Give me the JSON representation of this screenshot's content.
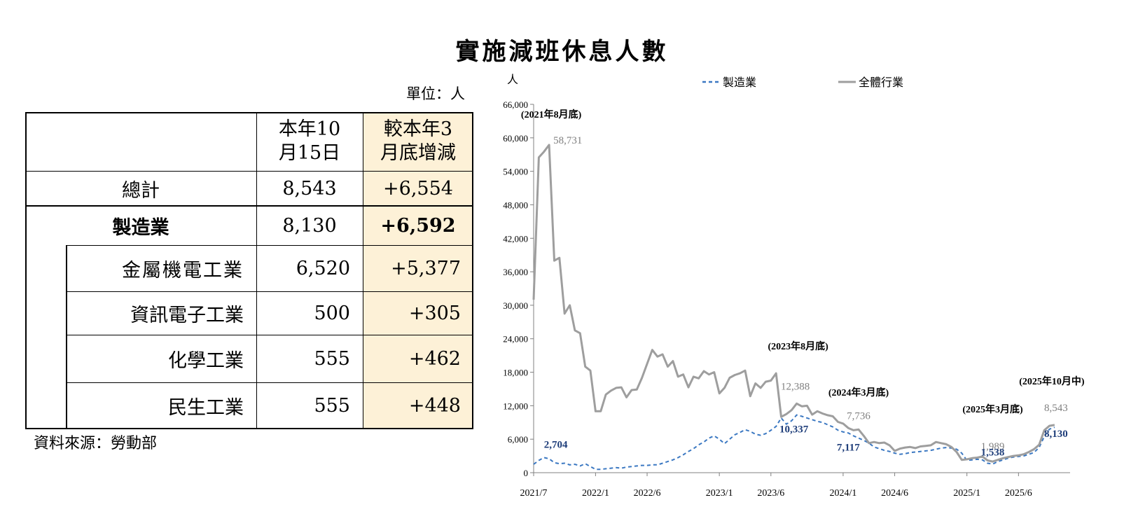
{
  "title": "實施減班休息人數",
  "unit_label": "單位：人",
  "source": "資料來源：勞動部",
  "table": {
    "col_current": "本年10\n月15日",
    "col_change": "較本年3\n月底增減",
    "rows": {
      "total": {
        "label": "總計",
        "value": "8,543",
        "change": "+6,554"
      },
      "manufacturing": {
        "label": "製造業",
        "value": "8,130",
        "change": "+6,592"
      },
      "metal": {
        "label": "金屬機電工業",
        "value": "6,520",
        "change": "+5,377"
      },
      "it": {
        "label": "資訊電子工業",
        "value": "500",
        "change": "+305"
      },
      "chem": {
        "label": "化學工業",
        "value": "555",
        "change": "+462"
      },
      "livelihood": {
        "label": "民生工業",
        "value": "555",
        "change": "+448"
      }
    }
  },
  "colors": {
    "manufacturing": "#3b78c2",
    "all": "#9e9e9e",
    "label_blue": "#1f3e7a",
    "highlight": "#fdf1d7"
  },
  "chart_data": {
    "type": "line",
    "y_unit": "人",
    "ylim": [
      0,
      66000
    ],
    "yticks": [
      0,
      6000,
      12000,
      18000,
      24000,
      30000,
      36000,
      42000,
      48000,
      54000,
      60000,
      66000
    ],
    "ytick_labels": [
      "0",
      "6,000",
      "12,000",
      "18,000",
      "24,000",
      "30,000",
      "36,000",
      "42,000",
      "48,000",
      "54,000",
      "60,000",
      "66,000"
    ],
    "xlim": [
      0,
      104
    ],
    "xticks": [
      {
        "x": 0,
        "label": "2021/7"
      },
      {
        "x": 12,
        "label": "2022/1"
      },
      {
        "x": 22,
        "label": "2022/6"
      },
      {
        "x": 36,
        "label": "2023/1"
      },
      {
        "x": 46,
        "label": "2023/6"
      },
      {
        "x": 60,
        "label": "2024/1"
      },
      {
        "x": 70,
        "label": "2024/6"
      },
      {
        "x": 84,
        "label": "2025/1"
      },
      {
        "x": 94,
        "label": "2025/6"
      }
    ],
    "series": [
      {
        "name": "製造業",
        "style": "dashed",
        "values": [
          [
            0,
            1500
          ],
          [
            1,
            2200
          ],
          [
            2,
            2704
          ],
          [
            3,
            2500
          ],
          [
            4,
            1800
          ],
          [
            5,
            1600
          ],
          [
            6,
            1700
          ],
          [
            7,
            1400
          ],
          [
            8,
            1500
          ],
          [
            9,
            1200
          ],
          [
            10,
            1600
          ],
          [
            11,
            1100
          ],
          [
            12,
            600
          ],
          [
            13,
            600
          ],
          [
            14,
            700
          ],
          [
            15,
            800
          ],
          [
            16,
            900
          ],
          [
            17,
            800
          ],
          [
            18,
            1000
          ],
          [
            19,
            1100
          ],
          [
            20,
            1200
          ],
          [
            21,
            1300
          ],
          [
            22,
            1300
          ],
          [
            23,
            1400
          ],
          [
            24,
            1400
          ],
          [
            25,
            1700
          ],
          [
            26,
            2000
          ],
          [
            27,
            2300
          ],
          [
            28,
            2700
          ],
          [
            29,
            3200
          ],
          [
            30,
            3800
          ],
          [
            31,
            4300
          ],
          [
            32,
            5000
          ],
          [
            33,
            5500
          ],
          [
            34,
            6200
          ],
          [
            35,
            6600
          ],
          [
            36,
            6000
          ],
          [
            37,
            5200
          ],
          [
            38,
            6000
          ],
          [
            39,
            6800
          ],
          [
            40,
            7200
          ],
          [
            41,
            7700
          ],
          [
            42,
            7400
          ],
          [
            43,
            6900
          ],
          [
            44,
            6700
          ],
          [
            45,
            7000
          ],
          [
            46,
            7600
          ],
          [
            47,
            8300
          ],
          [
            48,
            9800
          ],
          [
            49,
            8700
          ],
          [
            50,
            9300
          ],
          [
            51,
            10337
          ],
          [
            52,
            10100
          ],
          [
            53,
            9800
          ],
          [
            54,
            9500
          ],
          [
            55,
            9200
          ],
          [
            56,
            9000
          ],
          [
            57,
            8600
          ],
          [
            58,
            8200
          ],
          [
            59,
            7600
          ],
          [
            60,
            7300
          ],
          [
            61,
            7117
          ],
          [
            62,
            6600
          ],
          [
            63,
            6200
          ],
          [
            64,
            5800
          ],
          [
            65,
            5300
          ],
          [
            66,
            4600
          ],
          [
            67,
            4300
          ],
          [
            68,
            4000
          ],
          [
            69,
            3800
          ],
          [
            70,
            3500
          ],
          [
            71,
            3300
          ],
          [
            72,
            3400
          ],
          [
            73,
            3600
          ],
          [
            74,
            3700
          ],
          [
            75,
            3800
          ],
          [
            76,
            3900
          ],
          [
            77,
            4000
          ],
          [
            78,
            4200
          ],
          [
            79,
            4400
          ],
          [
            80,
            4500
          ],
          [
            81,
            4400
          ],
          [
            82,
            4200
          ],
          [
            83,
            3500
          ],
          [
            84,
            2200
          ],
          [
            85,
            2300
          ],
          [
            86,
            2400
          ],
          [
            87,
            2300
          ],
          [
            88,
            1700
          ],
          [
            89,
            1538
          ],
          [
            90,
            2000
          ],
          [
            91,
            2300
          ],
          [
            92,
            2600
          ],
          [
            93,
            2800
          ],
          [
            94,
            2900
          ],
          [
            95,
            3000
          ],
          [
            96,
            3300
          ],
          [
            97,
            3600
          ],
          [
            98,
            4500
          ],
          [
            99,
            6500
          ],
          [
            100,
            7800
          ],
          [
            101,
            8130
          ]
        ]
      },
      {
        "name": "全體行業",
        "style": "solid",
        "values": [
          [
            0,
            31000
          ],
          [
            1,
            56500
          ],
          [
            2,
            57500
          ],
          [
            3,
            58731
          ],
          [
            4,
            38000
          ],
          [
            5,
            38500
          ],
          [
            6,
            28500
          ],
          [
            7,
            30000
          ],
          [
            8,
            25500
          ],
          [
            9,
            25000
          ],
          [
            10,
            19000
          ],
          [
            11,
            18300
          ],
          [
            12,
            11000
          ],
          [
            13,
            11000
          ],
          [
            14,
            14000
          ],
          [
            15,
            14700
          ],
          [
            16,
            15200
          ],
          [
            17,
            15300
          ],
          [
            18,
            13500
          ],
          [
            19,
            14800
          ],
          [
            20,
            14900
          ],
          [
            21,
            17000
          ],
          [
            22,
            19500
          ],
          [
            23,
            22000
          ],
          [
            24,
            20800
          ],
          [
            25,
            21200
          ],
          [
            26,
            19000
          ],
          [
            27,
            20000
          ],
          [
            28,
            17200
          ],
          [
            29,
            17600
          ],
          [
            30,
            15300
          ],
          [
            31,
            17200
          ],
          [
            32,
            16900
          ],
          [
            33,
            18200
          ],
          [
            34,
            17600
          ],
          [
            35,
            18000
          ],
          [
            36,
            14200
          ],
          [
            37,
            15200
          ],
          [
            38,
            17000
          ],
          [
            39,
            17500
          ],
          [
            40,
            17800
          ],
          [
            41,
            18300
          ],
          [
            42,
            13700
          ],
          [
            43,
            16000
          ],
          [
            44,
            15200
          ],
          [
            45,
            16300
          ],
          [
            46,
            16500
          ],
          [
            47,
            17800
          ],
          [
            48,
            10000
          ],
          [
            49,
            10500
          ],
          [
            50,
            11200
          ],
          [
            51,
            12388
          ],
          [
            52,
            11900
          ],
          [
            53,
            12000
          ],
          [
            54,
            10400
          ],
          [
            55,
            11000
          ],
          [
            56,
            10600
          ],
          [
            57,
            10300
          ],
          [
            58,
            10100
          ],
          [
            59,
            9100
          ],
          [
            60,
            8800
          ],
          [
            61,
            8000
          ],
          [
            62,
            7600
          ],
          [
            63,
            7736
          ],
          [
            64,
            6600
          ],
          [
            65,
            5300
          ],
          [
            66,
            5500
          ],
          [
            67,
            5300
          ],
          [
            68,
            5400
          ],
          [
            69,
            4900
          ],
          [
            70,
            3900
          ],
          [
            71,
            4300
          ],
          [
            72,
            4500
          ],
          [
            73,
            4600
          ],
          [
            74,
            4400
          ],
          [
            75,
            4700
          ],
          [
            76,
            4800
          ],
          [
            77,
            4900
          ],
          [
            78,
            5500
          ],
          [
            79,
            5300
          ],
          [
            80,
            5100
          ],
          [
            81,
            4600
          ],
          [
            82,
            3700
          ],
          [
            83,
            2300
          ],
          [
            84,
            2400
          ],
          [
            85,
            2600
          ],
          [
            86,
            2700
          ],
          [
            87,
            2900
          ],
          [
            88,
            2200
          ],
          [
            89,
            1989
          ],
          [
            90,
            2300
          ],
          [
            91,
            2600
          ],
          [
            92,
            2800
          ],
          [
            93,
            3000
          ],
          [
            94,
            3100
          ],
          [
            95,
            3300
          ],
          [
            96,
            3700
          ],
          [
            97,
            4200
          ],
          [
            98,
            5000
          ],
          [
            99,
            7600
          ],
          [
            100,
            8400
          ],
          [
            101,
            8543
          ]
        ]
      }
    ],
    "annotations": [
      {
        "x": 3,
        "y": 58731,
        "text": "58,731",
        "series": "全體行業"
      },
      {
        "x": 51,
        "y": 12388,
        "text": "12,388",
        "series": "全體行業"
      },
      {
        "x": 63,
        "y": 7736,
        "text": "7,736",
        "series": "全體行業"
      },
      {
        "x": 89,
        "y": 1989,
        "text": "1,989",
        "series": "全體行業"
      },
      {
        "x": 101,
        "y": 8543,
        "text": "8,543",
        "series": "全體行業"
      },
      {
        "x": 2,
        "y": 2704,
        "text": "2,704",
        "series": "製造業"
      },
      {
        "x": 51,
        "y": 10337,
        "text": "10,337",
        "series": "製造業"
      },
      {
        "x": 61,
        "y": 7117,
        "text": "7,117",
        "series": "製造業"
      },
      {
        "x": 89,
        "y": 1538,
        "text": "1,538",
        "series": "製造業"
      },
      {
        "x": 101,
        "y": 8130,
        "text": "8,130",
        "series": "製造業"
      }
    ],
    "period_labels": [
      {
        "x": 3,
        "text": "(2021年8月底)"
      },
      {
        "x": 51,
        "text": "(2023年8月底)"
      },
      {
        "x": 63,
        "text": "(2024年3月底)"
      },
      {
        "x": 89,
        "text": "(2025年3月底)"
      },
      {
        "x": 101,
        "text": "(2025年10月中)"
      }
    ]
  }
}
